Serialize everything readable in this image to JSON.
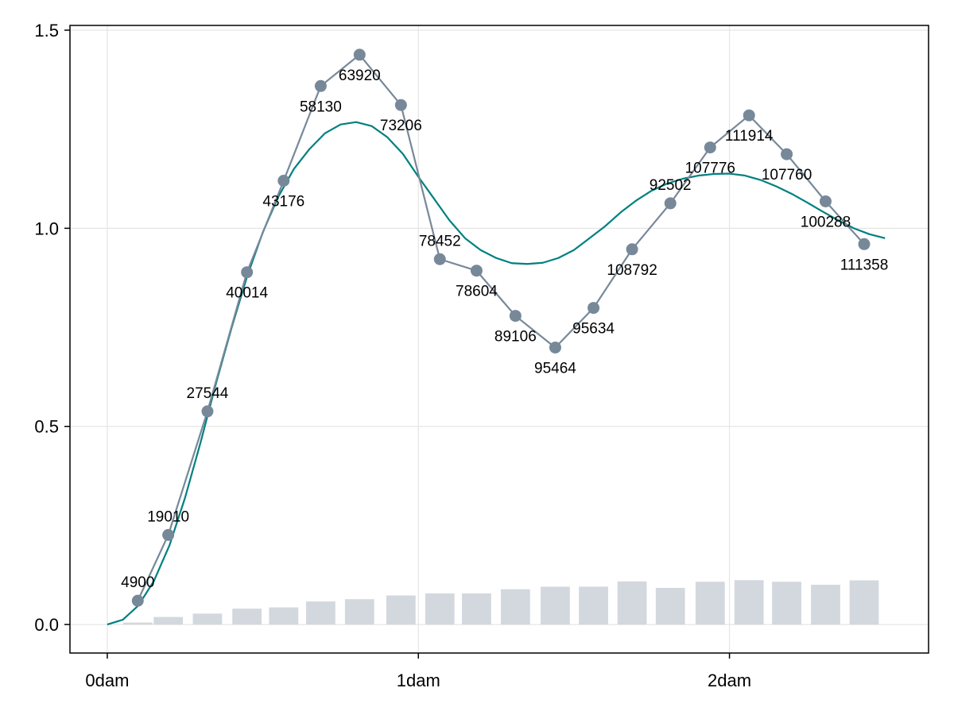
{
  "chart_data": {
    "type": "line",
    "title": "",
    "xlabel": "",
    "ylabel": "",
    "x_unit": "dam",
    "xlim": [
      -0.12,
      2.64
    ],
    "ylim": [
      -0.072,
      1.512
    ],
    "x_ticks": [
      {
        "value": 0,
        "label": "0dam"
      },
      {
        "value": 1,
        "label": "1dam"
      },
      {
        "value": 2,
        "label": "2dam"
      }
    ],
    "y_ticks": [
      {
        "value": 0.0,
        "label": "0.0"
      },
      {
        "value": 0.5,
        "label": "0.5"
      },
      {
        "value": 1.0,
        "label": "1.0"
      },
      {
        "value": 1.5,
        "label": "1.5"
      }
    ],
    "grid": true,
    "colors": {
      "points_series": "#778899",
      "smooth_series": "#008080",
      "bars": "#D3D8DE",
      "grid": "#E5E5E5",
      "frame": "#000000"
    },
    "point_series": {
      "x": [
        0.098,
        0.196,
        0.322,
        0.449,
        0.567,
        0.686,
        0.811,
        0.944,
        1.069,
        1.187,
        1.312,
        1.44,
        1.563,
        1.687,
        1.81,
        1.938,
        2.063,
        2.184,
        2.309,
        2.433
      ],
      "y": [
        0.06,
        0.226,
        0.538,
        0.889,
        1.12,
        1.359,
        1.438,
        1.311,
        0.922,
        0.893,
        0.779,
        0.699,
        0.799,
        0.947,
        1.063,
        1.204,
        1.285,
        1.187,
        1.068,
        0.96
      ],
      "labels": [
        "4900",
        "19010",
        "27544",
        "40014",
        "43176",
        "58130",
        "63920",
        "73206",
        "78452",
        "78604",
        "89106",
        "95464",
        "95634",
        "108792",
        "92502",
        "107776",
        "111914",
        "107760",
        "100288",
        "111358"
      ],
      "label_pos": [
        "above",
        "above",
        "above",
        "below",
        "below",
        "below",
        "below",
        "below",
        "above",
        "below",
        "below",
        "below",
        "below",
        "below",
        "above",
        "below",
        "below",
        "below",
        "below",
        "below"
      ]
    },
    "smooth_series": {
      "x": [
        0.0,
        0.05,
        0.1,
        0.15,
        0.2,
        0.25,
        0.3,
        0.35,
        0.4,
        0.45,
        0.5,
        0.55,
        0.6,
        0.65,
        0.7,
        0.75,
        0.8,
        0.85,
        0.9,
        0.95,
        1.0,
        1.05,
        1.1,
        1.15,
        1.2,
        1.25,
        1.3,
        1.35,
        1.4,
        1.45,
        1.5,
        1.55,
        1.6,
        1.65,
        1.7,
        1.75,
        1.8,
        1.85,
        1.9,
        1.95,
        2.0,
        2.05,
        2.1,
        2.15,
        2.2,
        2.25,
        2.3,
        2.35,
        2.4,
        2.45,
        2.5
      ],
      "y": [
        0.0,
        0.012,
        0.048,
        0.11,
        0.2,
        0.32,
        0.46,
        0.61,
        0.75,
        0.88,
        0.99,
        1.08,
        1.15,
        1.2,
        1.24,
        1.262,
        1.268,
        1.258,
        1.23,
        1.188,
        1.13,
        1.075,
        1.02,
        0.975,
        0.945,
        0.925,
        0.912,
        0.91,
        0.913,
        0.925,
        0.945,
        0.975,
        1.005,
        1.04,
        1.07,
        1.095,
        1.113,
        1.125,
        1.133,
        1.137,
        1.138,
        1.133,
        1.122,
        1.106,
        1.087,
        1.065,
        1.042,
        1.02,
        1.0,
        0.985,
        0.975
      ]
    },
    "bar_series": {
      "x": [
        0.098,
        0.196,
        0.322,
        0.449,
        0.567,
        0.686,
        0.811,
        0.944,
        1.069,
        1.187,
        1.312,
        1.44,
        1.563,
        1.687,
        1.81,
        1.938,
        2.063,
        2.184,
        2.309,
        2.433
      ],
      "values": [
        0.0049,
        0.019,
        0.0275,
        0.04,
        0.0432,
        0.0581,
        0.0639,
        0.0732,
        0.0785,
        0.0786,
        0.0891,
        0.0955,
        0.0956,
        0.1088,
        0.0925,
        0.1078,
        0.1119,
        0.1078,
        0.1003,
        0.1114
      ]
    }
  }
}
